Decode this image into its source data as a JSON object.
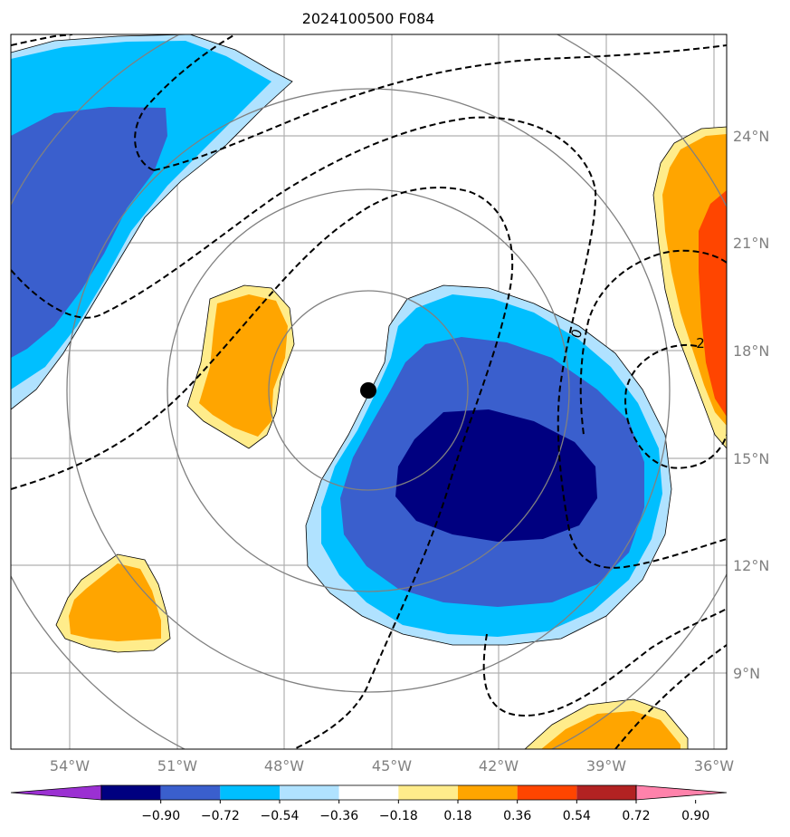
{
  "chart_data": {
    "type": "contour-map",
    "title": "2024100500 F084",
    "x_ticks": [
      "54°W",
      "51°W",
      "48°W",
      "45°W",
      "42°W",
      "39°W",
      "36°W"
    ],
    "y_ticks": [
      "24°N",
      "21°N",
      "18°N",
      "15°N",
      "12°N",
      "9°N"
    ],
    "lon_range": [
      -55.6,
      -35.6
    ],
    "lat_range": [
      7.5,
      27.5
    ],
    "center_marker": {
      "lon": -45.0,
      "lat": 16.8
    },
    "dashed_contour_labels": [
      "0",
      "2"
    ],
    "colorbar": {
      "ticks": [
        "−0.90",
        "−0.72",
        "−0.54",
        "−0.36",
        "−0.18",
        "0.18",
        "0.36",
        "0.54",
        "0.72",
        "0.90"
      ],
      "colors": [
        "#9b30d2",
        "#000080",
        "#3a5fcd",
        "#00bfff",
        "#b0e2ff",
        "#ffffff",
        "#ffec8b",
        "#ffa500",
        "#ff4500",
        "#b22222",
        "#ff82ab"
      ]
    }
  }
}
